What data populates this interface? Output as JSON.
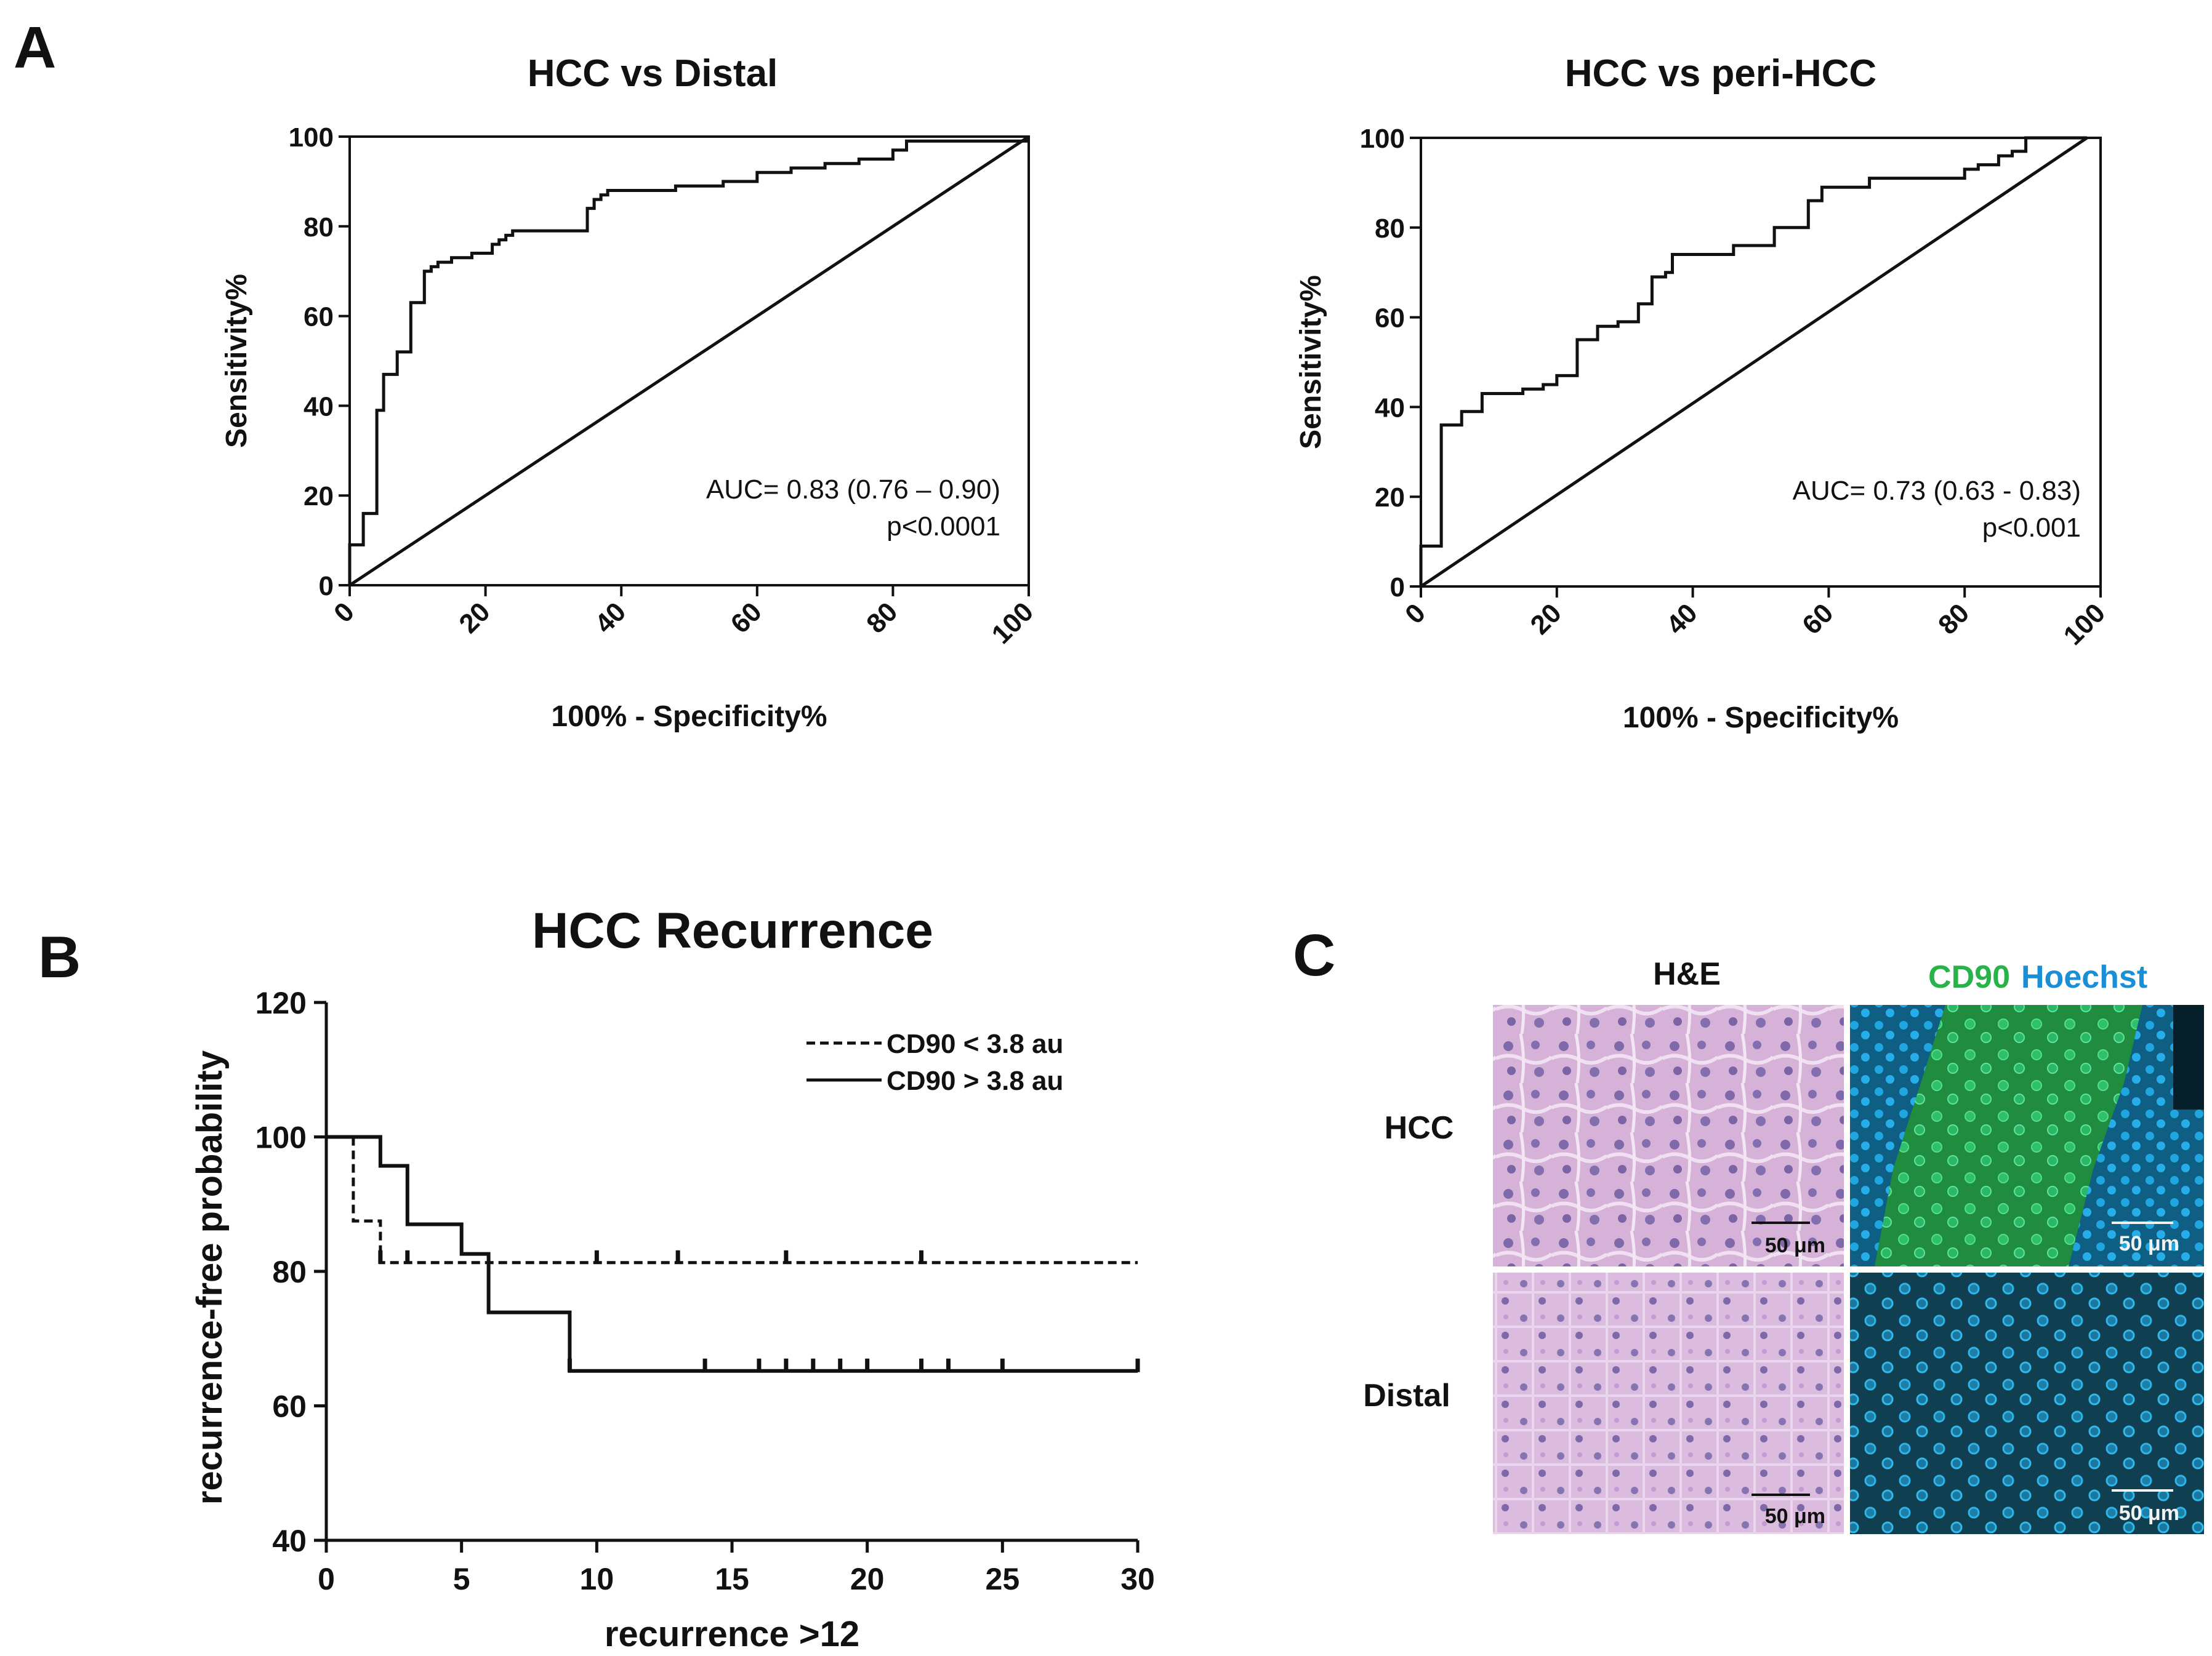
{
  "panels": {
    "a_letter": "A",
    "b_letter": "B",
    "c_letter": "C"
  },
  "chart_data": [
    {
      "id": "roc1",
      "type": "line",
      "title": "HCC vs Distal",
      "xlabel": "100% - Specificity%",
      "ylabel": "Sensitivity%",
      "xlim": [
        0,
        100
      ],
      "ylim": [
        0,
        100
      ],
      "xticks": [
        "0",
        "20",
        "40",
        "60",
        "80",
        "100"
      ],
      "yticks": [
        "0",
        "20",
        "40",
        "60",
        "80",
        "100"
      ],
      "annotation": [
        "AUC= 0.83 (0.76 – 0.90)",
        "p<0.0001"
      ],
      "series": [
        {
          "name": "ROC",
          "style": "solid",
          "x": [
            0,
            0,
            2,
            2,
            4,
            4,
            5,
            5,
            7,
            7,
            9,
            9,
            11,
            11,
            12,
            12,
            13,
            13,
            15,
            15,
            18,
            18,
            21,
            21,
            22,
            22,
            23,
            23,
            24,
            24,
            35,
            35,
            36,
            36,
            37,
            37,
            38,
            38,
            48,
            48,
            55,
            55,
            60,
            60,
            65,
            65,
            70,
            70,
            75,
            75,
            80,
            80,
            82,
            82,
            100
          ],
          "y": [
            0,
            9,
            9,
            16,
            16,
            39,
            39,
            47,
            47,
            52,
            52,
            63,
            63,
            70,
            70,
            71,
            71,
            72,
            72,
            73,
            73,
            74,
            74,
            76,
            76,
            77,
            77,
            78,
            78,
            79,
            79,
            84,
            84,
            86,
            86,
            87,
            87,
            88,
            88,
            89,
            89,
            90,
            90,
            92,
            92,
            93,
            93,
            94,
            94,
            95,
            95,
            97,
            97,
            99,
            99
          ]
        },
        {
          "name": "reference",
          "style": "solid",
          "x": [
            0,
            100
          ],
          "y": [
            0,
            100
          ]
        }
      ]
    },
    {
      "id": "roc2",
      "type": "line",
      "title": "HCC vs peri-HCC",
      "xlabel": "100% - Specificity%",
      "ylabel": "Sensitivity%",
      "xlim": [
        0,
        100
      ],
      "ylim": [
        0,
        100
      ],
      "xticks": [
        "0",
        "20",
        "40",
        "60",
        "80",
        "100"
      ],
      "yticks": [
        "0",
        "20",
        "40",
        "60",
        "80",
        "100"
      ],
      "annotation": [
        "AUC= 0.73 (0.63 - 0.83)",
        "p<0.001"
      ],
      "series": [
        {
          "name": "ROC",
          "style": "solid",
          "x": [
            0,
            0,
            3,
            3,
            6,
            6,
            9,
            9,
            15,
            15,
            18,
            18,
            20,
            20,
            23,
            23,
            26,
            26,
            29,
            29,
            32,
            32,
            34,
            34,
            36,
            36,
            37,
            37,
            46,
            46,
            52,
            52,
            57,
            57,
            59,
            59,
            66,
            66,
            80,
            80,
            82,
            82,
            85,
            85,
            87,
            87,
            89,
            89,
            98
          ],
          "y": [
            0,
            9,
            9,
            36,
            36,
            39,
            39,
            43,
            43,
            44,
            44,
            45,
            45,
            47,
            47,
            55,
            55,
            58,
            58,
            59,
            59,
            63,
            63,
            69,
            69,
            70,
            70,
            74,
            74,
            76,
            76,
            80,
            80,
            86,
            86,
            89,
            89,
            91,
            91,
            93,
            93,
            94,
            94,
            96,
            96,
            97,
            97,
            100,
            100
          ]
        },
        {
          "name": "reference",
          "style": "solid",
          "x": [
            0,
            98
          ],
          "y": [
            0,
            100
          ]
        }
      ]
    },
    {
      "id": "km",
      "type": "line",
      "title": "HCC Recurrence",
      "xlabel": "recurrence >12",
      "ylabel": "recurrence-free probability",
      "xlim": [
        0,
        30
      ],
      "ylim": [
        40,
        120
      ],
      "xticks": [
        "0",
        "5",
        "10",
        "15",
        "20",
        "25",
        "30"
      ],
      "yticks": [
        "40",
        "60",
        "80",
        "100",
        "120"
      ],
      "legend_position": "top-right",
      "series": [
        {
          "name": "CD90 < 3.8 au",
          "style": "dashed",
          "x": [
            0,
            1,
            1,
            2,
            2,
            30
          ],
          "y": [
            100,
            100,
            87.5,
            87.5,
            81.3,
            81.3
          ],
          "censor_x": [
            2,
            3,
            10,
            13,
            17,
            22
          ],
          "censor_y": [
            81.3,
            81.3,
            81.3,
            81.3,
            81.3,
            81.3
          ]
        },
        {
          "name": "CD90 > 3.8 au",
          "style": "solid",
          "x": [
            0,
            2,
            2,
            3,
            3,
            5,
            5,
            6,
            6,
            9,
            9,
            30
          ],
          "y": [
            100,
            100,
            95.7,
            95.7,
            87,
            87,
            82.6,
            82.6,
            73.9,
            73.9,
            65.2,
            65.2
          ],
          "censor_x": [
            9,
            14,
            16,
            17,
            18,
            19,
            20,
            22,
            23,
            25,
            30
          ],
          "censor_y": [
            65.2,
            65.2,
            65.2,
            65.2,
            65.2,
            65.2,
            65.2,
            65.2,
            65.2,
            65.2,
            65.2
          ]
        }
      ]
    }
  ],
  "micrographs": {
    "col_he": "H&E",
    "col_cd90": "CD90",
    "col_hoechst": "Hoechst",
    "row_hcc": "HCC",
    "row_distal": "Distal",
    "scale_bar": "50 μm",
    "colors": {
      "he_bg": "#dcbbdc",
      "he_cell": "#b58ac5",
      "nucleus_he": "#6e5aa0",
      "cd90": "#27b34a",
      "hoechst": "#1aa3e0",
      "fluor_bg": "#0d3a50"
    }
  }
}
